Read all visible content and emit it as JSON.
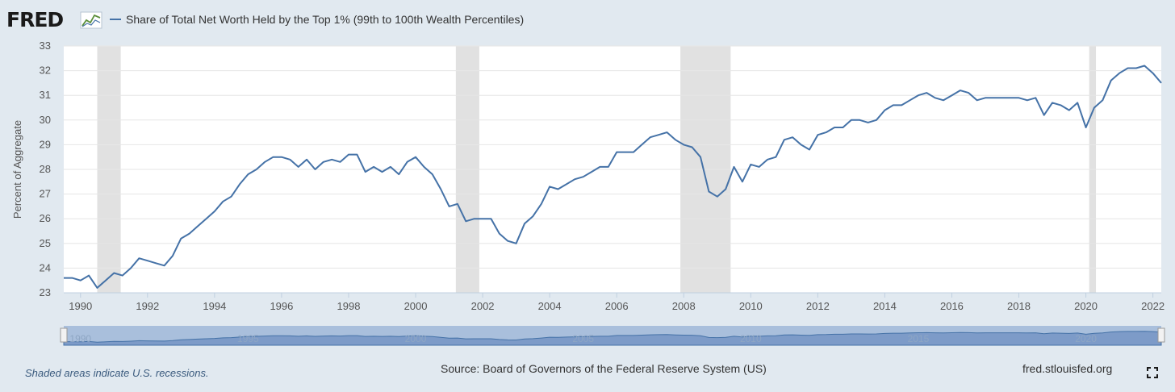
{
  "header": {
    "logo_text": "FRED",
    "legend_label": "Share of Total Net Worth Held by the Top 1% (99th to 100th Wealth Percentiles)",
    "series_color": "#4572a7"
  },
  "footer": {
    "recession_note": "Shaded areas indicate U.S. recessions.",
    "source": "Source: Board of Governors of the Federal Reserve System (US)",
    "site": "fred.stlouisfed.org"
  },
  "icons": {
    "fullscreen": "fullscreen-icon",
    "logo_graph": "line-graph-icon"
  },
  "chart_data": {
    "type": "line",
    "title": "",
    "xlabel": "",
    "ylabel": "Percent of Aggregate",
    "xlim": [
      1989.5,
      2022.25
    ],
    "ylim": [
      23,
      33
    ],
    "yticks": [
      23,
      24,
      25,
      26,
      27,
      28,
      29,
      30,
      31,
      32,
      33
    ],
    "xticks": [
      "1990",
      "1992",
      "1994",
      "1996",
      "1998",
      "2000",
      "2002",
      "2004",
      "2006",
      "2008",
      "2010",
      "2012",
      "2014",
      "2016",
      "2018",
      "2020",
      "2022"
    ],
    "navigator_ticks": [
      "1990",
      "1995",
      "2000",
      "2005",
      "2010",
      "2015",
      "2020"
    ],
    "grid": true,
    "recessions": [
      [
        1990.5,
        1991.2
      ],
      [
        2001.2,
        2001.9
      ],
      [
        2007.9,
        2009.4
      ],
      [
        2020.1,
        2020.3
      ]
    ],
    "series": [
      {
        "color": "#4572a7",
        "x": [
          1989.5,
          1989.75,
          1990.0,
          1990.25,
          1990.5,
          1990.75,
          1991.0,
          1991.25,
          1991.5,
          1991.75,
          1992.0,
          1992.25,
          1992.5,
          1992.75,
          1993.0,
          1993.25,
          1993.5,
          1993.75,
          1994.0,
          1994.25,
          1994.5,
          1994.75,
          1995.0,
          1995.25,
          1995.5,
          1995.75,
          1996.0,
          1996.25,
          1996.5,
          1996.75,
          1997.0,
          1997.25,
          1997.5,
          1997.75,
          1998.0,
          1998.25,
          1998.5,
          1998.75,
          1999.0,
          1999.25,
          1999.5,
          1999.75,
          2000.0,
          2000.25,
          2000.5,
          2000.75,
          2001.0,
          2001.25,
          2001.5,
          2001.75,
          2002.0,
          2002.25,
          2002.5,
          2002.75,
          2003.0,
          2003.25,
          2003.5,
          2003.75,
          2004.0,
          2004.25,
          2004.5,
          2004.75,
          2005.0,
          2005.25,
          2005.5,
          2005.75,
          2006.0,
          2006.25,
          2006.5,
          2006.75,
          2007.0,
          2007.25,
          2007.5,
          2007.75,
          2008.0,
          2008.25,
          2008.5,
          2008.75,
          2009.0,
          2009.25,
          2009.5,
          2009.75,
          2010.0,
          2010.25,
          2010.5,
          2010.75,
          2011.0,
          2011.25,
          2011.5,
          2011.75,
          2012.0,
          2012.25,
          2012.5,
          2012.75,
          2013.0,
          2013.25,
          2013.5,
          2013.75,
          2014.0,
          2014.25,
          2014.5,
          2014.75,
          2015.0,
          2015.25,
          2015.5,
          2015.75,
          2016.0,
          2016.25,
          2016.5,
          2016.75,
          2017.0,
          2017.25,
          2017.5,
          2017.75,
          2018.0,
          2018.25,
          2018.5,
          2018.75,
          2019.0,
          2019.25,
          2019.5,
          2019.75,
          2020.0,
          2020.25,
          2020.5,
          2020.75,
          2021.0,
          2021.25,
          2021.5,
          2021.75,
          2022.0,
          2022.25
        ],
        "values": [
          23.6,
          23.6,
          23.5,
          23.7,
          23.2,
          23.5,
          23.8,
          23.7,
          24.0,
          24.4,
          24.3,
          24.2,
          24.1,
          24.5,
          25.2,
          25.4,
          25.7,
          26.0,
          26.3,
          26.7,
          26.9,
          27.4,
          27.8,
          28.0,
          28.3,
          28.5,
          28.5,
          28.4,
          28.1,
          28.4,
          28.0,
          28.3,
          28.4,
          28.3,
          28.6,
          28.6,
          27.9,
          28.1,
          27.9,
          28.1,
          27.8,
          28.3,
          28.5,
          28.1,
          27.8,
          27.2,
          26.5,
          26.6,
          25.9,
          26.0,
          26.0,
          26.0,
          25.4,
          25.1,
          25.0,
          25.8,
          26.1,
          26.6,
          27.3,
          27.2,
          27.4,
          27.6,
          27.7,
          27.9,
          28.1,
          28.1,
          28.7,
          28.7,
          28.7,
          29.0,
          29.3,
          29.4,
          29.5,
          29.2,
          29.0,
          28.9,
          28.5,
          27.1,
          26.9,
          27.2,
          28.1,
          27.5,
          28.2,
          28.1,
          28.4,
          28.5,
          29.2,
          29.3,
          29.0,
          28.8,
          29.4,
          29.5,
          29.7,
          29.7,
          30.0,
          30.0,
          29.9,
          30.0,
          30.4,
          30.6,
          30.6,
          30.8,
          31.0,
          31.1,
          30.9,
          30.8,
          31.0,
          31.2,
          31.1,
          30.8,
          30.9,
          30.9,
          30.9,
          30.9,
          30.9,
          30.8,
          30.9,
          30.2,
          30.7,
          30.6,
          30.4,
          30.7,
          29.7,
          30.5,
          30.8,
          31.6,
          31.9,
          32.1,
          32.1,
          32.2,
          31.9,
          31.5
        ]
      }
    ]
  }
}
